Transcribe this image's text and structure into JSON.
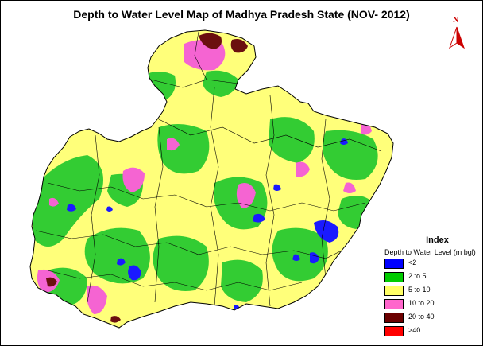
{
  "title": "Depth to Water Level Map of Madhya Pradesh State (NOV- 2012)",
  "north_arrow": {
    "letter": "N",
    "icon": "north-arrow-icon"
  },
  "legend": {
    "title": "Index",
    "subtitle": "Depth to Water Level (m bgl)",
    "items": [
      {
        "label": "<2",
        "color": "#0000ff"
      },
      {
        "label": "2 to 5",
        "color": "#00cc00"
      },
      {
        "label": "5 to 10",
        "color": "#ffff66"
      },
      {
        "label": "10 to 20",
        "color": "#ff66cc"
      },
      {
        "label": "20 to 40",
        "color": "#6b0000"
      },
      {
        "label": ">40",
        "color": "#ff0000"
      }
    ]
  },
  "colors": {
    "green": "#33cc33",
    "yellow": "#ffff7a",
    "blue": "#1a1aff",
    "pink": "#f564d2",
    "maroon": "#6b0f0f",
    "outline": "#000000"
  }
}
